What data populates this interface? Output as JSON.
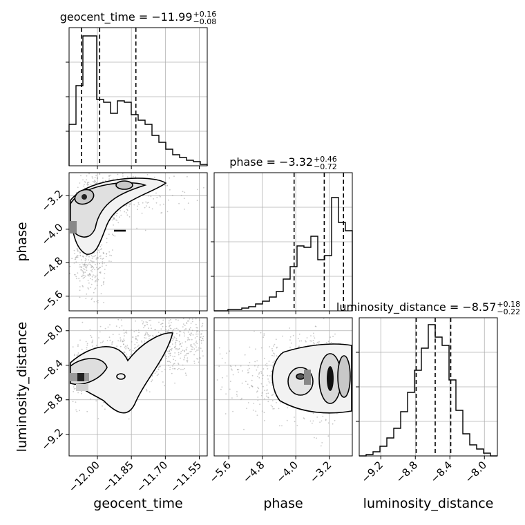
{
  "chart_data": {
    "type": "corner",
    "params": [
      {
        "name": "geocent_time",
        "xlabel": "geocent_time",
        "ylabel": "",
        "title": {
          "prefix": "geocent_time = −11.99",
          "plus": "+0.16",
          "minus": "−0.08"
        },
        "range": [
          -12.125,
          -11.515
        ],
        "quantiles": [
          -12.07,
          -11.99,
          -11.83
        ],
        "ticks": [
          -12.0,
          -11.85,
          -11.7,
          -11.55
        ],
        "tick_labels": [
          "−12.00",
          "−11.85",
          "−11.70",
          "−11.55"
        ],
        "hist_counts": [
          0.3,
          0.58,
          0.94,
          0.94,
          0.48,
          0.46,
          0.38,
          0.47,
          0.46,
          0.37,
          0.33,
          0.3,
          0.22,
          0.17,
          0.12,
          0.08,
          0.06,
          0.04,
          0.03,
          0.01
        ]
      },
      {
        "name": "phase",
        "xlabel": "phase",
        "ylabel": "phase",
        "title": {
          "prefix": "phase = −3.32",
          "plus": "+0.46",
          "minus": "−0.72"
        },
        "range": [
          -5.95,
          -2.65
        ],
        "quantiles": [
          -4.04,
          -3.32,
          -2.86
        ],
        "ticks": [
          -5.6,
          -4.8,
          -4.0,
          -3.2
        ],
        "tick_labels": [
          "−5.6",
          "−4.8",
          "−4.0",
          "−3.2"
        ],
        "hist_counts": [
          0.0,
          0.0,
          0.01,
          0.01,
          0.02,
          0.03,
          0.05,
          0.07,
          0.1,
          0.14,
          0.23,
          0.32,
          0.47,
          0.46,
          0.54,
          0.37,
          0.4,
          0.82,
          0.64,
          0.58
        ]
      },
      {
        "name": "luminosity_distance",
        "xlabel": "luminosity_distance",
        "ylabel": "luminosity_distance",
        "title": {
          "prefix": "luminosity_distance = −8.57",
          "plus": "+0.18",
          "minus": "−0.22"
        },
        "range": [
          -9.45,
          -7.85
        ],
        "quantiles": [
          -8.79,
          -8.57,
          -8.39
        ],
        "ticks": [
          -9.2,
          -8.8,
          -8.4,
          -8.0
        ],
        "tick_labels": [
          "−9.2",
          "−8.8",
          "−8.4",
          "−8.0"
        ],
        "hist_counts": [
          0.0,
          0.01,
          0.03,
          0.07,
          0.13,
          0.2,
          0.32,
          0.46,
          0.62,
          0.78,
          0.95,
          0.86,
          0.8,
          0.55,
          0.33,
          0.16,
          0.08,
          0.05,
          0.02,
          0.0
        ]
      }
    ],
    "grid": true,
    "colors": {
      "line": "#000000",
      "grid": "#b0b0b0",
      "scatter": "#9a9a9a",
      "fill_light": "#f2f2f2",
      "fill_mid": "#c8c8c8",
      "fill_dark": "#5a5a5a"
    }
  }
}
